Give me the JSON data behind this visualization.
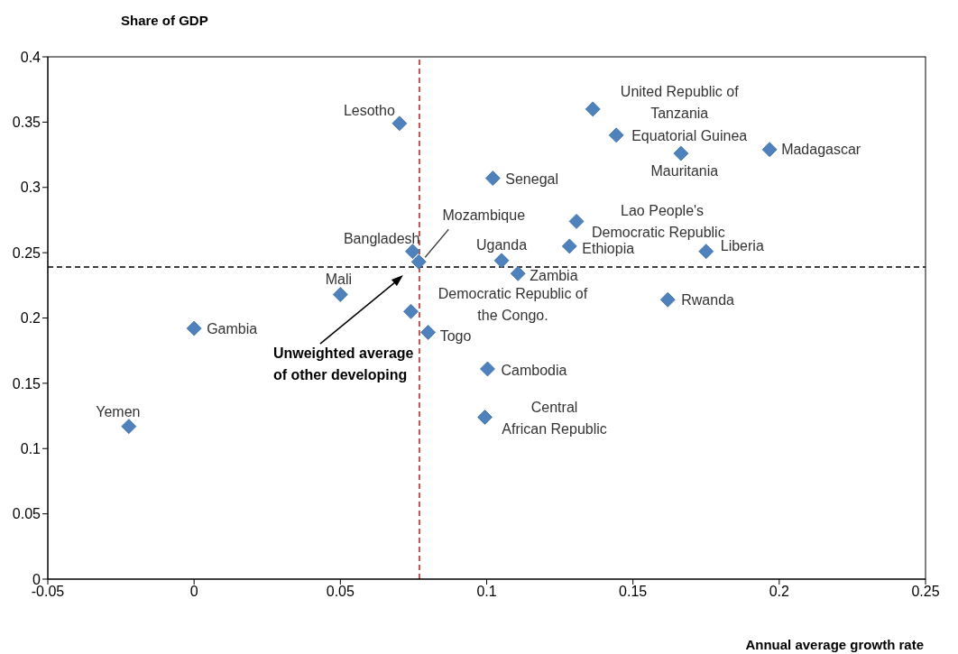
{
  "chart_data": {
    "type": "scatter",
    "xlabel": "Annual average growth rate",
    "ylabel": "Share of GDP",
    "x": [
      0.0702,
      0.1363,
      0.1443,
      0.1664,
      0.1967,
      0.1021,
      0.1307,
      0.1283,
      0.175,
      0.0747,
      0.0768,
      0.1051,
      0.1107,
      0.05,
      0.0741,
      0.1619,
      0.0,
      0.08,
      0.1003,
      0.0994,
      -0.0223
    ],
    "values": [
      0.349,
      0.36,
      0.34,
      0.326,
      0.329,
      0.307,
      0.274,
      0.255,
      0.251,
      0.251,
      0.243,
      0.244,
      0.234,
      0.218,
      0.205,
      0.214,
      0.192,
      0.189,
      0.161,
      0.124,
      0.117
    ],
    "color": "#4f81bd",
    "marker": "diamond",
    "xlim": [
      -0.05,
      0.25
    ],
    "xticks": [
      -0.05,
      0,
      0.05,
      0.1,
      0.15,
      0.2,
      0.25
    ],
    "ylim": [
      0,
      0.4
    ],
    "yticks": [
      0,
      0.05,
      0.1,
      0.15,
      0.2,
      0.25,
      0.3,
      0.35,
      0.4
    ],
    "ref_lines": [
      {
        "axis": "x",
        "value": 0.077,
        "color": "#c0504d",
        "line_style": "dashed"
      },
      {
        "axis": "y",
        "value": 0.239,
        "color": "#000000",
        "line_style": "dashed"
      }
    ],
    "annotations": [
      {
        "text": "Lesotho",
        "x": 0.0702,
        "y": 0.349
      },
      {
        "text": "United Republic of Tanzania",
        "x": 0.1363,
        "y": 0.36
      },
      {
        "text": "Equatorial Guinea",
        "x": 0.1443,
        "y": 0.34
      },
      {
        "text": "Mauritania",
        "x": 0.1664,
        "y": 0.326
      },
      {
        "text": "Madagascar",
        "x": 0.1967,
        "y": 0.329
      },
      {
        "text": "Senegal",
        "x": 0.1021,
        "y": 0.307
      },
      {
        "text": "Lao People's Democratic Republic",
        "x": 0.1307,
        "y": 0.274
      },
      {
        "text": "Ethiopia",
        "x": 0.1283,
        "y": 0.255
      },
      {
        "text": "Liberia",
        "x": 0.175,
        "y": 0.251
      },
      {
        "text": "Bangladesh",
        "x": 0.0747,
        "y": 0.251
      },
      {
        "text": "Mozambique",
        "x": 0.0768,
        "y": 0.243
      },
      {
        "text": "Uganda",
        "x": 0.1051,
        "y": 0.244
      },
      {
        "text": "Zambia",
        "x": 0.1107,
        "y": 0.234
      },
      {
        "text": "Mali",
        "x": 0.05,
        "y": 0.218
      },
      {
        "text": "Democratic Republic of the Congo.",
        "x": 0.0741,
        "y": 0.205
      },
      {
        "text": "Rwanda",
        "x": 0.1619,
        "y": 0.214
      },
      {
        "text": "Gambia",
        "x": 0.0,
        "y": 0.192
      },
      {
        "text": "Togo",
        "x": 0.08,
        "y": 0.189
      },
      {
        "text": "Cambodia",
        "x": 0.1003,
        "y": 0.161
      },
      {
        "text": "Central African Republic",
        "x": 0.0994,
        "y": 0.124
      },
      {
        "text": "Yemen",
        "x": -0.0223,
        "y": 0.117
      },
      "Unweighted average of other developing"
    ]
  }
}
